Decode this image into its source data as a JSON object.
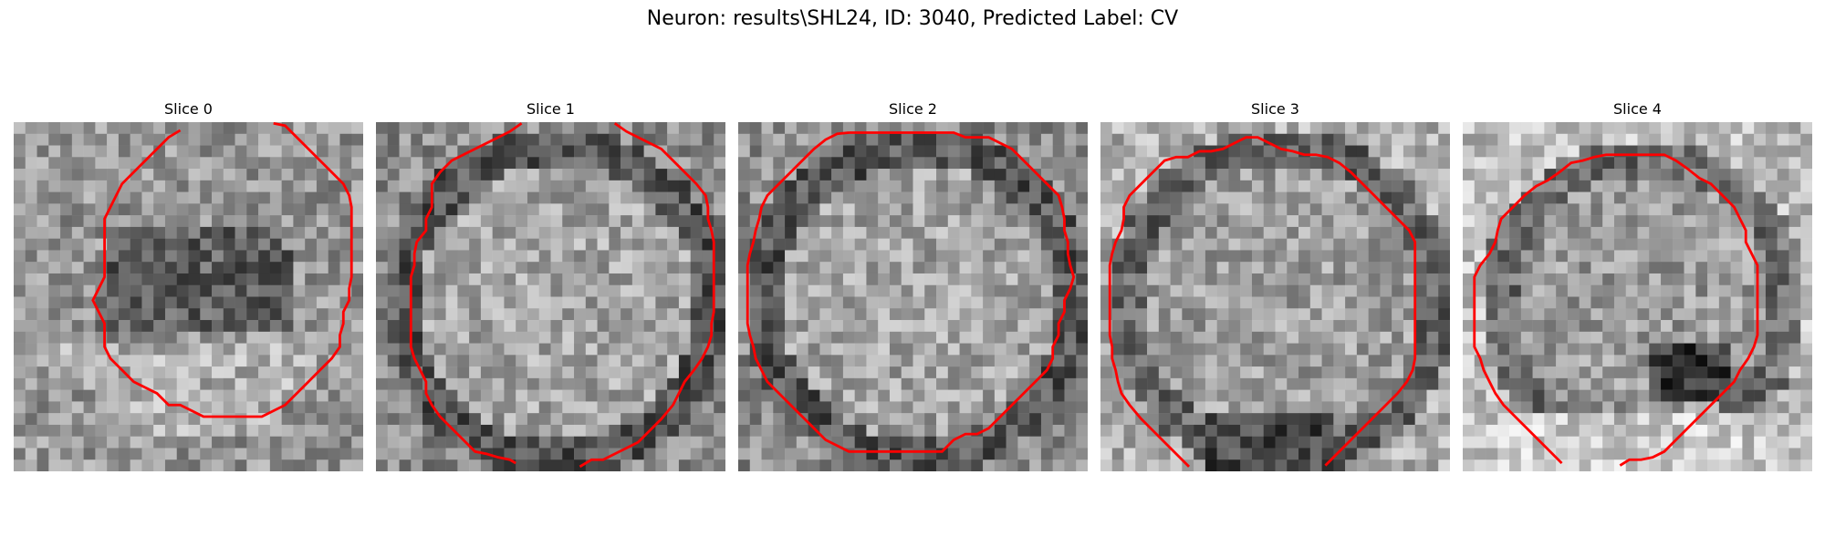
{
  "figure": {
    "title": "Neuron: results\\SHL24, ID: 3040, Predicted Label: CV"
  },
  "slices": [
    {
      "title": "Slice 0"
    },
    {
      "title": "Slice 1"
    },
    {
      "title": "Slice 2"
    },
    {
      "title": "Slice 3"
    },
    {
      "title": "Slice 4"
    }
  ],
  "colors": {
    "contour": "#ff0000",
    "background": "#ffffff"
  }
}
